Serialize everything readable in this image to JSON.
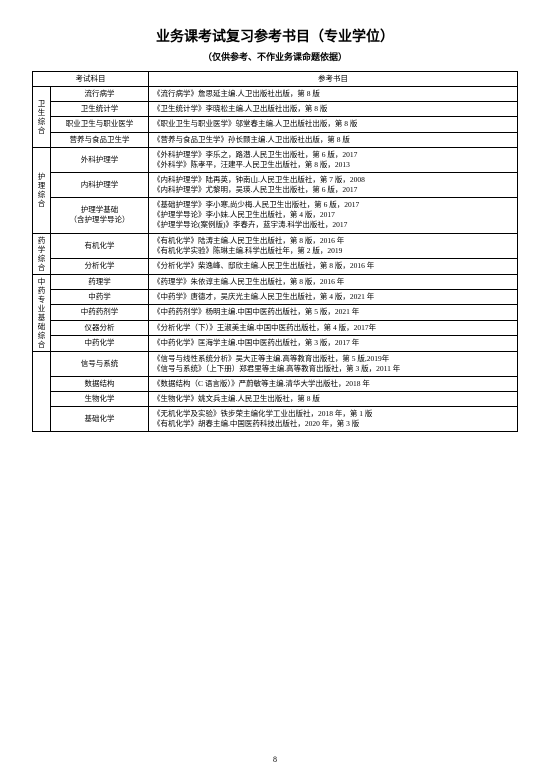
{
  "title": "业务课考试复习参考书目（专业学位）",
  "subtitle": "（仅供参考、不作业务课命题依据）",
  "header": {
    "c1": "考试科目",
    "c2": "参考书目"
  },
  "pageNumber": "8",
  "groups": [
    {
      "category": "卫生综合",
      "rows": [
        {
          "subject": "流行病学",
          "ref": "《流行病学》詹思延主编.人卫出版社出版，第 8 版"
        },
        {
          "subject": "卫生统计学",
          "ref": "《卫生统计学》李晓松主编.人卫出版社出版，第 8 版"
        },
        {
          "subject": "职业卫生与职业医学",
          "ref": "《职业卫生与职业医学》邬堂春主编.人卫出版社出版，第 8 版"
        },
        {
          "subject": "营养与食品卫生学",
          "ref": "《营养与食品卫生学》孙长颢主编.人卫出版社出版，第 8 版"
        }
      ]
    },
    {
      "category": "护理综合",
      "rows": [
        {
          "subject": "外科护理学",
          "ref": "《外科护理学》李乐之，路潜.人民卫生出版社，第 6 版，2017\n《外科学》陈孝平，汪建平.人民卫生出版社，第 8 版，2013"
        },
        {
          "subject": "内科护理学",
          "ref": "《内科护理学》陆再英，钟南山.人民卫生出版社，第 7 版，2008\n《内科护理学》尤黎明，吴瑛.人民卫生出版社，第 6 版，2017"
        },
        {
          "subject": "护理学基础\n（含护理学导论）",
          "ref": "《基础护理学》李小寒,尚少梅.人民卫生出版社，第 6 版，2017\n《护理学导论》李小妹.人民卫生出版社，第 4 版，2017\n《护理学导论(案例版)》李春卉，蓝宇涛.科学出版社，2017"
        }
      ]
    },
    {
      "category": "药学综合",
      "rows": [
        {
          "subject": "有机化学",
          "ref": "《有机化学》陆涛主编.人民卫生出版社，第 8 版，2016 年\n《有机化学实验》陈琳主编.科学出版社年，第 2 版，2019"
        },
        {
          "subject": "分析化学",
          "ref": "《分析化学》柴逸峰、邸欣主编.人民卫生出版社，第 8 版，2016 年"
        }
      ]
    },
    {
      "category": "中药专业基础综合",
      "rows": [
        {
          "subject": "药理学",
          "ref": "《药理学》朱依谆主编.人民卫生出版社，第 8 版，2016 年"
        },
        {
          "subject": "中药学",
          "ref": "《中药学》唐德才，吴庆光主编.人民卫生出版社，第 4 版，2021 年"
        },
        {
          "subject": "中药药剂学",
          "ref": "《中药药剂学》杨明主编.中国中医药出版社，第 5 版，2021 年"
        },
        {
          "subject": "仪器分析",
          "ref": "《分析化学（下）》王淑美主编.中国中医药出版社，第 4 版，2017年"
        },
        {
          "subject": "中药化学",
          "ref": "《中药化学》匡海学主编.中国中医药出版社，第 3 版，2017 年"
        }
      ]
    },
    {
      "category": "",
      "rows": [
        {
          "subject": "信号与系统",
          "ref": "《信号与线性系统分析》吴大正等主编.高等教育出版社，第 5 版,2019年\n《信号与系统》（上下册）郑君里等主编.高等教育出版社，第 3 版，2011 年"
        },
        {
          "subject": "数据结构",
          "ref": "《数据结构（C 语言版）》严蔚敏等主编.清华大学出版社，2018 年"
        },
        {
          "subject": "生物化学",
          "ref": "《生物化学》姚文兵主编.人民卫生出版社，第 8 版"
        },
        {
          "subject": "基础化学",
          "ref": "《无机化学及实验》铁步荣主编化学工业出版社，2018 年，第 1 版\n《有机化学》胡春主编.中国医药科技出版社，2020 年，第 3 版"
        }
      ]
    }
  ]
}
